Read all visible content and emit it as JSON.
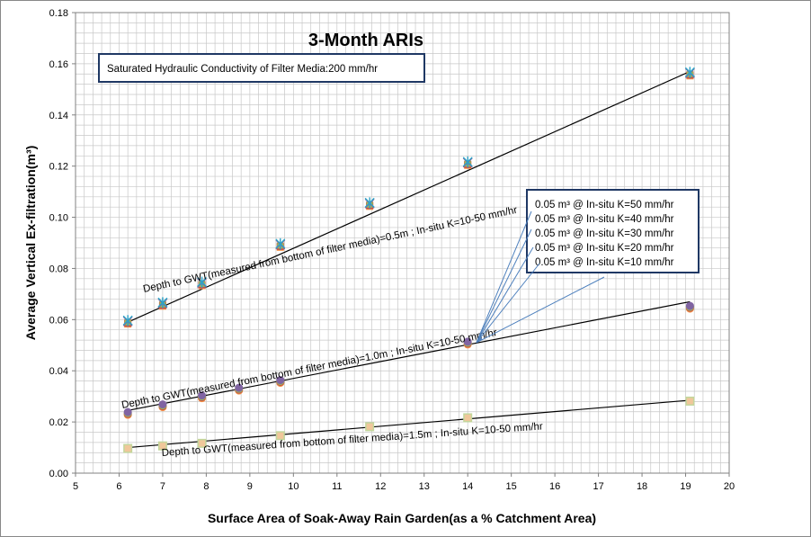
{
  "chart_data": {
    "type": "scatter",
    "title": "3-Month ARIs",
    "xlabel": "Surface Area of Soak-Away Rain Garden(as a %  Catchment Area)",
    "ylabel": "Average Vertical Ex-filtration(m³)",
    "xlim": [
      5,
      20
    ],
    "ylim": [
      0,
      0.18
    ],
    "xticks": [
      "5",
      "6",
      "7",
      "8",
      "9",
      "10",
      "11",
      "12",
      "13",
      "14",
      "15",
      "16",
      "17",
      "18",
      "19",
      "20"
    ],
    "yticks": [
      "0.00",
      "0.02",
      "0.04",
      "0.06",
      "0.08",
      "0.10",
      "0.12",
      "0.14",
      "0.16",
      "0.18"
    ],
    "grid": true,
    "annotation": "Saturated Hydraulic Conductivity of Filter Media:200 mm/hr",
    "legend": {
      "position": "right",
      "entries": [
        "0.05 m³ @ In-situ K=50 mm/hr",
        "0.05 m³ @ In-situ K=40 mm/hr",
        "0.05 m³ @ In-situ K=30 mm/hr",
        "0.05 m³ @ In-situ K=20 mm/hr",
        "0.05 m³ @ In-situ K=10 mm/hr"
      ]
    },
    "groups": [
      {
        "label": "Depth to GWT(measured from bottom of filter media)=0.5m ; In-situ K=10-50 mm/hr",
        "marker": "star-square",
        "x": [
          6.2,
          7.0,
          7.9,
          9.7,
          11.75,
          14.0,
          19.1
        ],
        "y": [
          0.059,
          0.066,
          0.074,
          0.089,
          0.105,
          0.121,
          0.156
        ],
        "trendline": [
          [
            6.2,
            0.059
          ],
          [
            19.1,
            0.157
          ]
        ]
      },
      {
        "label": "Depth to GWT(measured from bottom of filter media)=1.0m ; In-situ K=10-50 mm/hr",
        "marker": "circle",
        "x": [
          6.2,
          7.0,
          7.9,
          8.75,
          9.7,
          14.0,
          19.1
        ],
        "y": [
          0.0235,
          0.0265,
          0.03,
          0.033,
          0.036,
          0.051,
          0.065
        ],
        "trendline": [
          [
            6.2,
            0.0245
          ],
          [
            19.1,
            0.067
          ]
        ]
      },
      {
        "label": "Depth to GWT(measured from bottom of filter media)=1.5m ; In-situ K=10-50 mm/hr",
        "marker": "square-light",
        "x": [
          6.2,
          7.0,
          7.9,
          9.7,
          11.75,
          14.0,
          19.1
        ],
        "y": [
          0.01,
          0.011,
          0.012,
          0.015,
          0.0185,
          0.022,
          0.0285
        ],
        "trendline": [
          [
            6.2,
            0.01
          ],
          [
            19.1,
            0.0285
          ]
        ]
      }
    ],
    "colors": {
      "k50": "#2aa7c9",
      "k40": "#8064a2",
      "k30": "#9bbb59",
      "k20": "#c0504d",
      "k10": "#f79646",
      "pale_green": "#c3d69b",
      "arrow": "#4f81bd",
      "box_border": "#1f3864"
    }
  }
}
